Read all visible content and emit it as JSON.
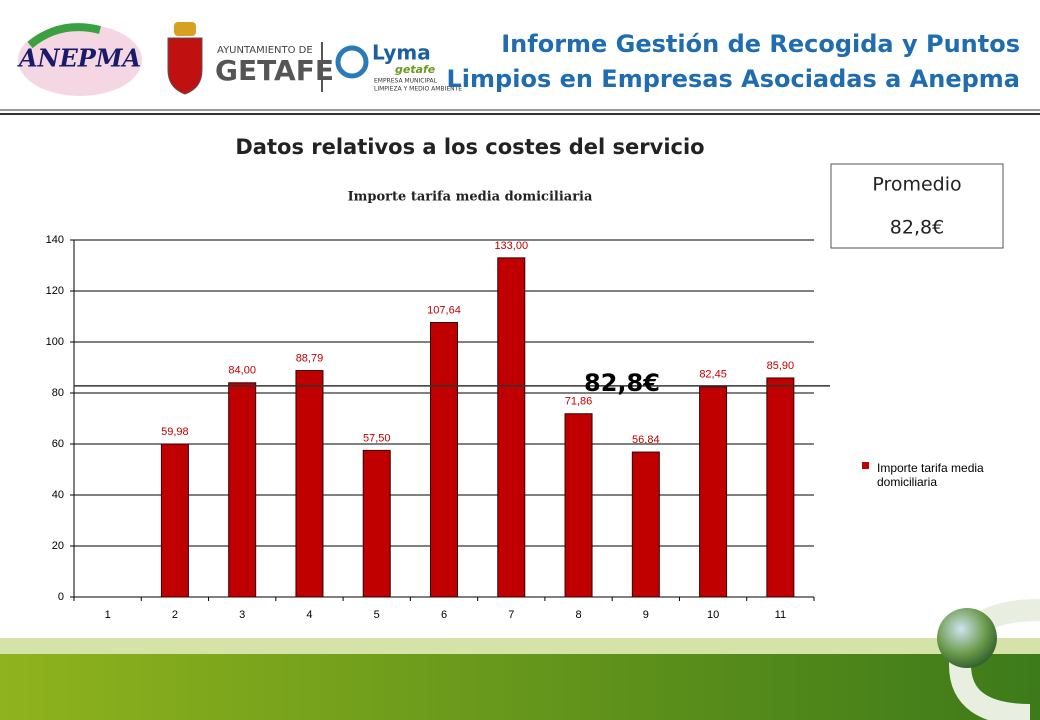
{
  "header": {
    "title_lines": [
      "Informe Gestión de Recogida y Puntos",
      "Limpios en Empresas Asociadas a Anepma"
    ],
    "logos": [
      "ANEPMA",
      "AYUNTAMIENTO DE",
      "GETAFE",
      "Lyma",
      "getafe",
      "EMPRESA MUNICIPAL",
      "LIMPIEZA Y MEDIO AMBIENTE"
    ]
  },
  "section_title": "Datos relativos a los costes del servicio",
  "summary": {
    "label": "Promedio",
    "value": "82,8€"
  },
  "chart_data": {
    "type": "bar",
    "title": "Importe tarifa media domiciliaria",
    "categories": [
      "1",
      "2",
      "3",
      "4",
      "5",
      "6",
      "7",
      "8",
      "9",
      "10",
      "11"
    ],
    "series": [
      {
        "name": "Importe tarifa media domiciliaria",
        "color": "#c00000",
        "values": [
          null,
          59.98,
          84.0,
          88.79,
          57.5,
          107.64,
          133.0,
          71.86,
          56.84,
          82.45,
          85.9
        ],
        "value_labels": [
          null,
          "59,98",
          "84,00",
          "88,79",
          "57,50",
          "107,64",
          "133,00",
          "71,86",
          "56,84",
          "82,45",
          "85,90"
        ]
      }
    ],
    "ylim": [
      0,
      140
    ],
    "yticks": [
      0,
      20,
      40,
      60,
      80,
      100,
      120,
      140
    ],
    "grid": true,
    "legend": "right",
    "average_line": {
      "value": 82.8,
      "label": "82,8€"
    }
  }
}
